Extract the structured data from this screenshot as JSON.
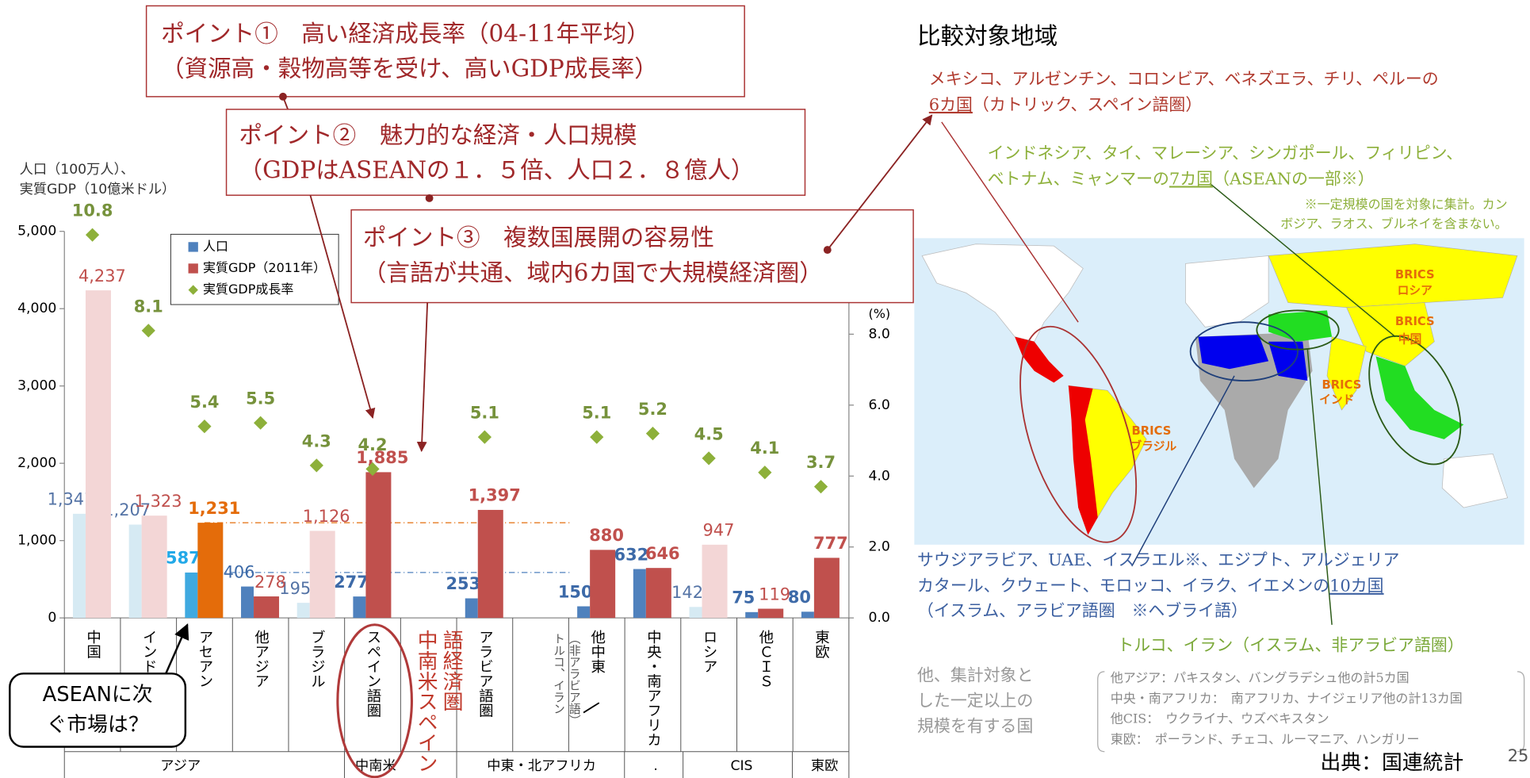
{
  "callouts": [
    {
      "lines": [
        "ポイント①　高い経済成長率（04-11年平均）",
        "（資源高・穀物高等を受け、高いGDP成長率）"
      ]
    },
    {
      "lines": [
        "ポイント②　魅力的な経済・人口規模",
        "（GDPはASEANの１．５倍、人口２．８億人）"
      ]
    },
    {
      "lines": [
        "ポイント③　複数国展開の容易性",
        "（言語が共通、域内6カ国で大規模経済圏）"
      ]
    }
  ],
  "chart_data": {
    "type": "bar",
    "ylabel": [
      "人口（100万人）、",
      "実質GDP（10億米ドル）"
    ],
    "y2label": "(%)",
    "categories": [
      "中国",
      "インド",
      "アセアン",
      "他アジア",
      "ブラジル",
      "スペイン語圏",
      null,
      "アラビア語圏",
      null,
      "他中東",
      "中央・南アフリカ",
      "ロシア",
      "他ＣＩＳ",
      "東欧"
    ],
    "groups": [
      "アジア",
      "中南米",
      "中東・北アフリカ",
      ".",
      "CIS",
      "東欧"
    ],
    "series": [
      {
        "name": "人口",
        "type": "bar",
        "color": "#4f81bd",
        "colors": [
          "#d6eaf3",
          "#d6eaf3",
          "#3fa9e0",
          "#4f81bd",
          "#d6eaf3",
          "#4f81bd",
          null,
          "#4f81bd",
          null,
          "#4f81bd",
          "#4f81bd",
          "#d6eaf3",
          "#4f81bd",
          "#4f81bd"
        ],
        "label_colors": [
          "#5574a6",
          "#5574a6",
          "#22a9e8",
          "#3d6aa8",
          "#5574a6",
          "#3d6aa8",
          null,
          "#3d6aa8",
          null,
          "#3d6aa8",
          "#3d6aa8",
          "#5574a6",
          "#3d6aa8",
          "#3d6aa8"
        ],
        "label_bold": [
          false,
          false,
          true,
          false,
          false,
          true,
          null,
          true,
          null,
          true,
          true,
          false,
          true,
          true
        ],
        "values": [
          1347,
          1207,
          587,
          406,
          195,
          277,
          null,
          253,
          null,
          150,
          632,
          142,
          75,
          80
        ],
        "value_labels": [
          "1,347",
          "1,207",
          "587",
          "406",
          "195",
          "277",
          null,
          "253",
          null,
          "150",
          "632",
          "142",
          "75",
          "80"
        ]
      },
      {
        "name": "実質GDP（2011年）",
        "type": "bar",
        "color": "#c0504d",
        "colors": [
          "#f3d6d6",
          "#f3d6d6",
          "#e46c0a",
          "#c0504d",
          "#f3d6d6",
          "#c0504d",
          null,
          "#c0504d",
          null,
          "#c0504d",
          "#c0504d",
          "#f3d6d6",
          "#c0504d",
          "#c0504d"
        ],
        "label_colors": [
          "#c0504d",
          "#c0504d",
          "#e46c0a",
          "#c0504d",
          "#c0504d",
          "#c0504d",
          null,
          "#c0504d",
          null,
          "#c0504d",
          "#c0504d",
          "#c0504d",
          "#c0504d",
          "#c0504d"
        ],
        "label_bold": [
          false,
          false,
          true,
          false,
          false,
          true,
          null,
          true,
          null,
          true,
          true,
          false,
          false,
          true
        ],
        "values": [
          4237,
          1323,
          1231,
          278,
          1126,
          1885,
          null,
          1397,
          null,
          880,
          646,
          947,
          119,
          777
        ],
        "value_labels": [
          "4,237",
          "1,323",
          "1,231",
          "278",
          "1,126",
          "1,885",
          null,
          "1,397",
          null,
          "880",
          "646",
          "947",
          "119",
          "777"
        ]
      },
      {
        "name": "実質GDP成長率",
        "type": "scatter",
        "axis": "y2",
        "color": "#8db03a",
        "values": [
          10.8,
          8.1,
          5.4,
          5.5,
          4.3,
          4.2,
          null,
          5.1,
          null,
          5.1,
          5.2,
          4.5,
          4.1,
          3.7
        ]
      }
    ],
    "ylim": [
      0,
      5000
    ],
    "yticks": [
      0,
      {
        "value": 1000,
        "label": "1,000"
      },
      {
        "value": 2000,
        "label": "2,000"
      },
      {
        "value": 3000,
        "label": "3,000"
      },
      {
        "value": 4000,
        "label": "4,000"
      },
      {
        "value": 5000,
        "label": "5,000"
      }
    ],
    "y2lim": [
      0,
      10.9
    ],
    "y2ticks": [
      {
        "value": 0,
        "label": "0.0"
      },
      {
        "value": 2,
        "label": "2.0"
      },
      {
        "value": 4,
        "label": "4.0"
      },
      {
        "value": 6,
        "label": "6.0"
      },
      {
        "value": 8,
        "label": "8.0"
      }
    ],
    "grid": false,
    "legend": "top-left",
    "annotations": {
      "spanish": [
        "中南米スペイン",
        "語経済圏"
      ],
      "turkey": [
        "トルコ、イラン",
        "（非アラビア語）"
      ],
      "asean_question": [
        "ASEANに次",
        "ぐ市場は？"
      ]
    }
  },
  "regions": {
    "title": "比較対象地域",
    "latin": {
      "line1": "メキシコ、アルゼンチン、コロンビア、ベネズエラ、チリ、ペルーの",
      "count": "6カ国",
      "rest": "（カトリック、スペイン語圏）"
    },
    "asean": {
      "line1": "インドネシア、タイ、マレーシア、シンガポール、フィリピン、",
      "line2": "ベトナム、ミャンマーの",
      "count": "7カ国",
      "rest": "（ASEANの一部※）",
      "note": [
        "※一定規模の国を対象に集計。カン",
        "ボジア、ラオス、ブルネイを含まない。"
      ]
    },
    "mideast": {
      "line1": "サウジアラビア、UAE、イスラエル※、エジプト、アルジェリア",
      "line2": "カタール、クウェート、モロッコ、イラク、イエメンの",
      "count": "10カ国",
      "rest": "（イスラム、アラビア語圏　※ヘブライ語）"
    },
    "turkey": "トルコ、イラン（イスラム、非アラビア語圏）",
    "other": [
      "他、集計対象と",
      "した一定以上の",
      "規模を有する国"
    ],
    "other_list": [
      "他アジア：パキスタン、バングラデシュ他の計5カ国",
      "中央・南アフリカ：　南アフリカ、ナイジェリア他の計13カ国",
      "他CIS：　ウクライナ、ウズベキスタン",
      "東欧：　ポーランド、チェコ、ルーマニア、ハンガリー"
    ]
  },
  "map": {
    "labels": [
      [
        "BRICS",
        "ロシア"
      ],
      [
        "BRICS",
        "中国"
      ],
      [
        "BRICS",
        "インド"
      ],
      [
        "BRICS",
        "ブラジル"
      ]
    ]
  },
  "source": "出典：国連統計",
  "page": "25"
}
